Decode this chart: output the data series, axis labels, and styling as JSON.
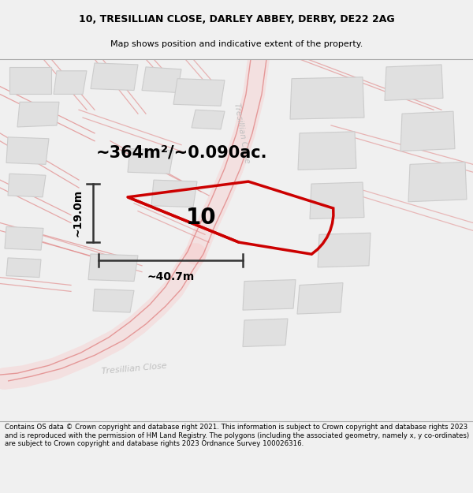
{
  "title_line1": "10, TRESILLIAN CLOSE, DARLEY ABBEY, DERBY, DE22 2AG",
  "title_line2": "Map shows position and indicative extent of the property.",
  "footer_text": "Contains OS data © Crown copyright and database right 2021. This information is subject to Crown copyright and database rights 2023 and is reproduced with the permission of HM Land Registry. The polygons (including the associated geometry, namely x, y co-ordinates) are subject to Crown copyright and database rights 2023 Ordnance Survey 100026316.",
  "area_label": "~364m²/~0.090ac.",
  "width_label": "~40.7m",
  "height_label": "~19.0m",
  "plot_number": "10",
  "bg_color": "#f0f0f0",
  "map_bg": "#ffffff",
  "road_fill": "#f9c8c8",
  "road_edge": "#e08080",
  "building_fill": "#e0e0e0",
  "building_edge": "#cccccc",
  "plot_edge": "#cc0000",
  "road_label_color": "#c0c0c0",
  "dim_color": "#333333",
  "title_color": "#000000",
  "header_bg": "#f0f0f0",
  "footer_bg": "#f0f0f0"
}
